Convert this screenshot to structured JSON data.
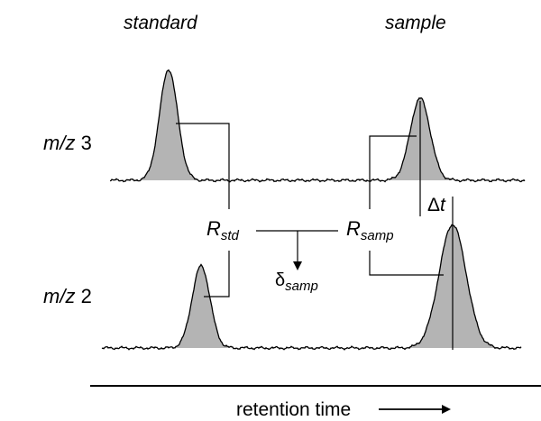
{
  "headers": {
    "standard": "standard",
    "sample": "sample"
  },
  "traces": {
    "mz3": {
      "prefix": "m/z",
      "value": "3"
    },
    "mz2": {
      "prefix": "m/z",
      "value": "2"
    }
  },
  "ratios": {
    "std": {
      "symbol": "R",
      "subscript": "std"
    },
    "samp": {
      "symbol": "R",
      "subscript": "samp"
    }
  },
  "delta": {
    "symbol": "δ",
    "subscript": "samp"
  },
  "shift": {
    "symbol": "Δ",
    "variable": "t"
  },
  "axis": {
    "label": "retention time"
  },
  "colors": {
    "peak_fill": "#b4b4b4",
    "line": "#000000",
    "background": "#ffffff"
  }
}
